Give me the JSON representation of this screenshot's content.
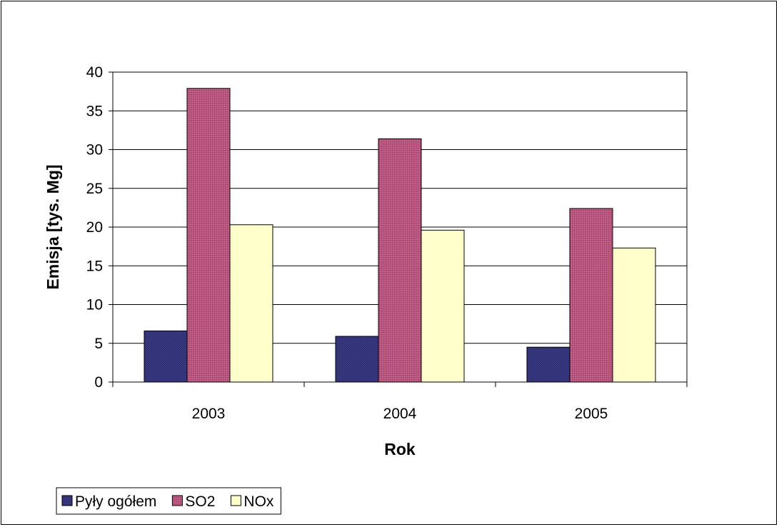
{
  "chart_data": {
    "type": "bar",
    "title": "",
    "xlabel": "Rok",
    "ylabel": "Emisja [tys. Mg]",
    "categories": [
      "2003",
      "2004",
      "2005"
    ],
    "ylim": [
      0,
      40
    ],
    "yticks": [
      0,
      5,
      10,
      15,
      20,
      25,
      30,
      35,
      40
    ],
    "grid": true,
    "legend_position": "bottom-left",
    "series": [
      {
        "name": "Pyły ogółem",
        "values": [
          6.6,
          5.9,
          4.5
        ],
        "color": "#3f3f8f"
      },
      {
        "name": "SO2",
        "values": [
          37.9,
          31.4,
          22.4
        ],
        "color": "#b9547e"
      },
      {
        "name": "NOx",
        "values": [
          20.3,
          19.6,
          17.3
        ],
        "color": "#ffffcc"
      }
    ]
  }
}
